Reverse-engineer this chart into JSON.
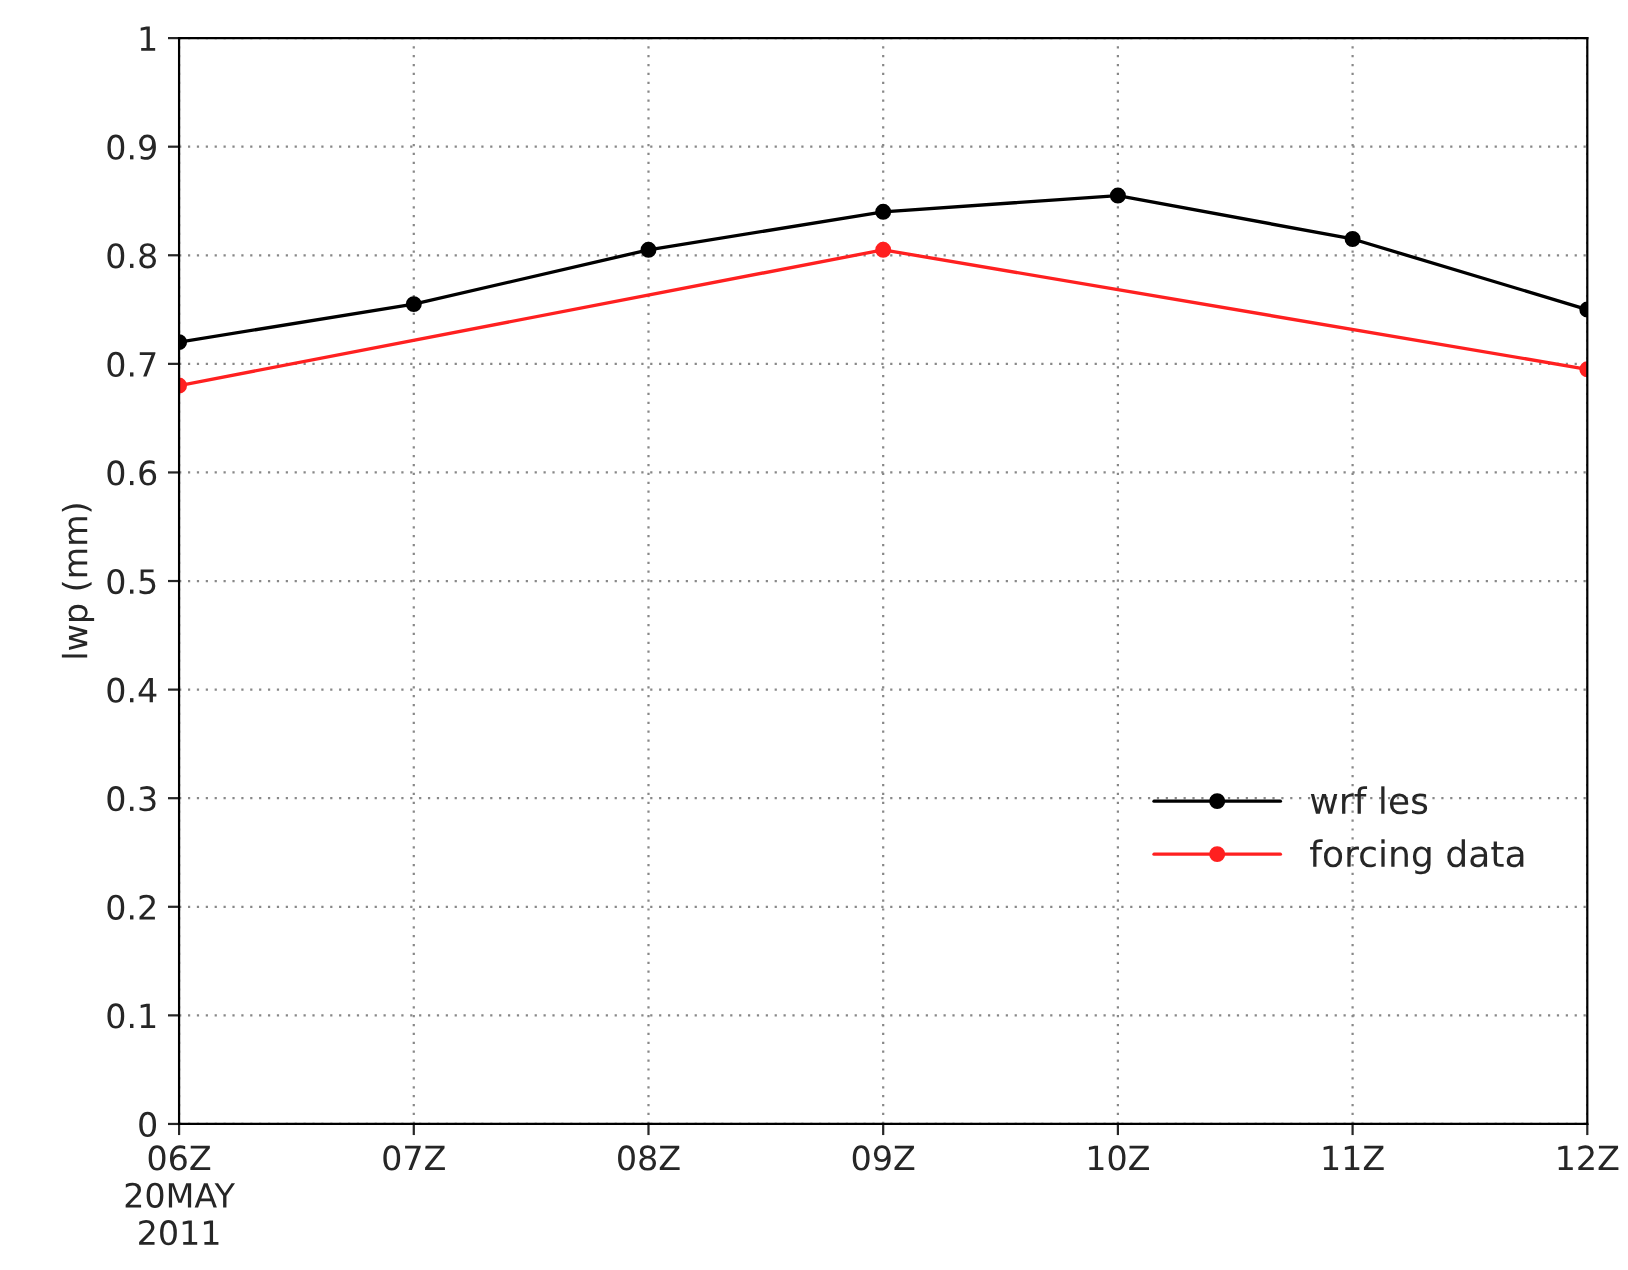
{
  "chart_data": {
    "type": "line",
    "ylabel": "lwp (mm)",
    "series": [
      {
        "name": "wrf les",
        "color": "#000000",
        "x": [
          6,
          7,
          8,
          9,
          10,
          11,
          12
        ],
        "values": [
          0.72,
          0.755,
          0.805,
          0.84,
          0.855,
          0.815,
          0.75
        ]
      },
      {
        "name": "forcing data",
        "color": "#ff2020",
        "x": [
          6,
          9,
          12
        ],
        "values": [
          0.68,
          0.805,
          0.695
        ]
      }
    ],
    "xlim": [
      6,
      12
    ],
    "xticks": [
      {
        "value": 6,
        "label": "06Z\n20MAY\n2011"
      },
      {
        "value": 7,
        "label": "07Z"
      },
      {
        "value": 8,
        "label": "08Z"
      },
      {
        "value": 9,
        "label": "09Z"
      },
      {
        "value": 10,
        "label": "10Z"
      },
      {
        "value": 11,
        "label": "11Z"
      },
      {
        "value": 12,
        "label": "12Z"
      }
    ],
    "ylim": [
      0,
      1
    ],
    "yticks": [
      0,
      0.1,
      0.2,
      0.3,
      0.4,
      0.5,
      0.6,
      0.7,
      0.8,
      0.9,
      1
    ],
    "grid": true,
    "legend": "right",
    "marker": "circle",
    "line_style": "solid"
  }
}
